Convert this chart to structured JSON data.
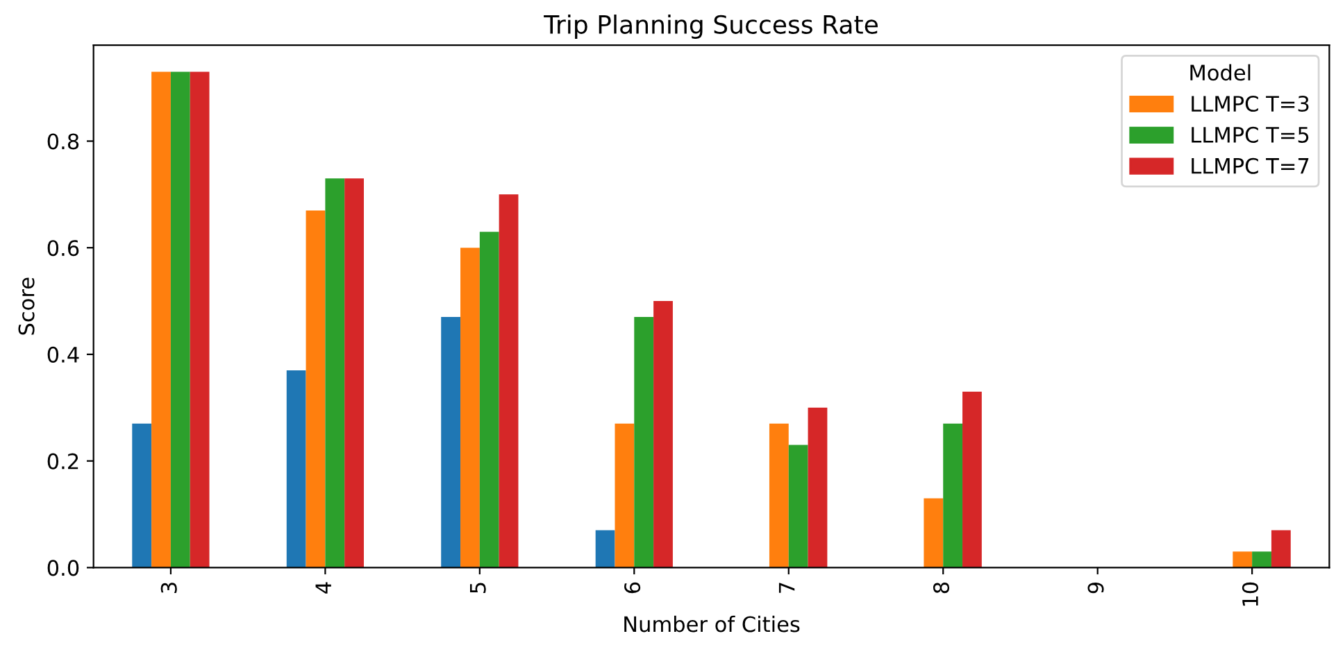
{
  "chart_data": {
    "type": "bar",
    "title": "Trip Planning Success Rate",
    "xlabel": "Number of Cities",
    "ylabel": "Score",
    "legend_title": "Model",
    "legend": "top right",
    "categories": [
      "3",
      "4",
      "5",
      "6",
      "7",
      "8",
      "9",
      "10"
    ],
    "series": [
      {
        "color": "#1f77b4",
        "values": [
          0.27,
          0.37,
          0.47,
          0.07,
          0,
          0,
          0,
          0
        ]
      },
      {
        "name": "LLMPC T=3",
        "color": "#ff7f0e",
        "values": [
          0.93,
          0.67,
          0.6,
          0.27,
          0.27,
          0.13,
          0,
          0.03
        ]
      },
      {
        "name": "LLMPC T=5",
        "color": "#2ca02c",
        "values": [
          0.93,
          0.73,
          0.63,
          0.47,
          0.23,
          0.27,
          0,
          0.03
        ]
      },
      {
        "name": "LLMPC T=7",
        "color": "#d62728",
        "values": [
          0.93,
          0.73,
          0.7,
          0.5,
          0.3,
          0.33,
          0,
          0.07
        ]
      }
    ],
    "ylim": [
      0,
      0.98
    ],
    "yticks": [
      {
        "value": 0,
        "label": "0.0"
      },
      0.2,
      0.4,
      0.6,
      0.8
    ],
    "grid": false
  }
}
